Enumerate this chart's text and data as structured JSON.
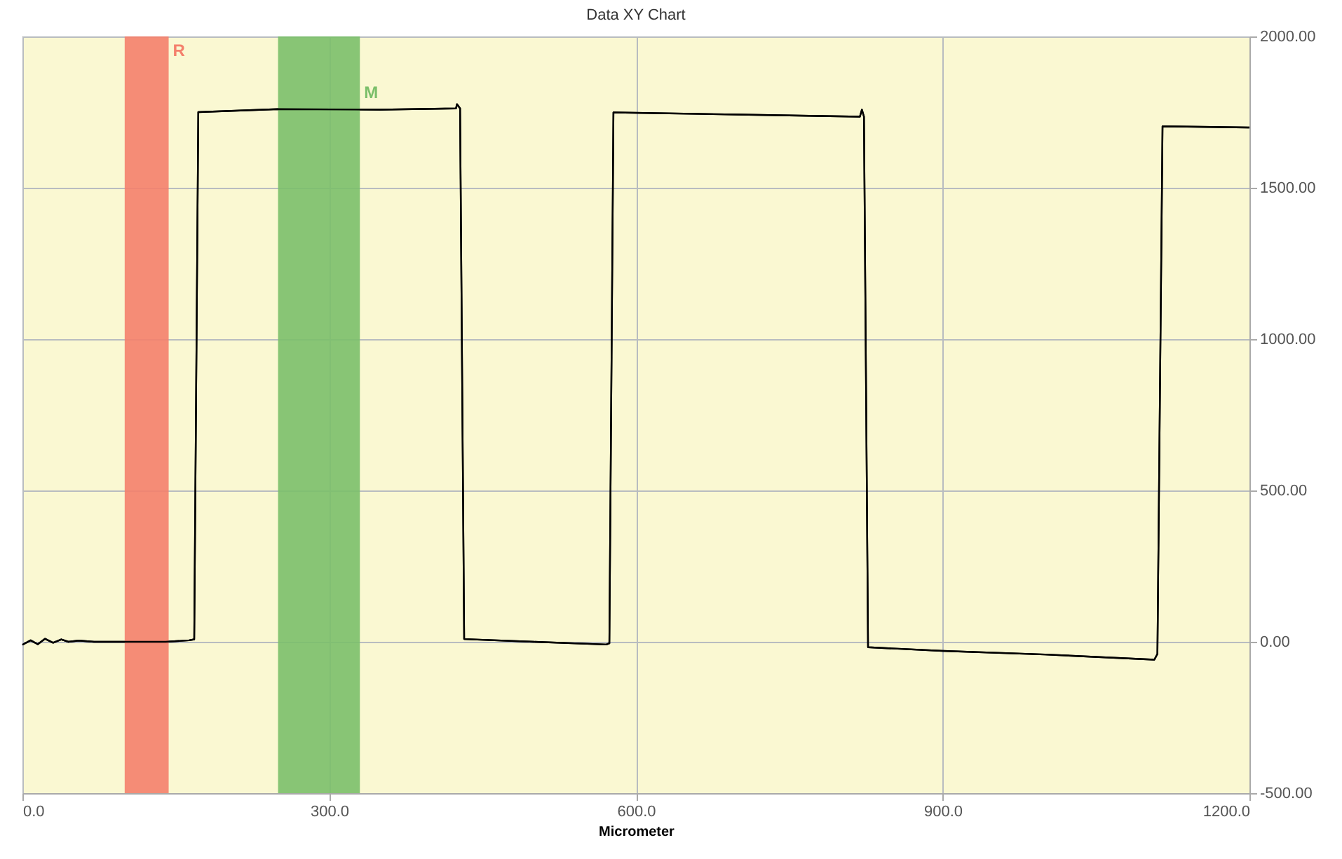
{
  "chart_data": {
    "type": "line",
    "title": "Data XY Chart",
    "xlabel": "Micrometer",
    "x": [
      0,
      8,
      15,
      22,
      30,
      38,
      45,
      55,
      70,
      100,
      140,
      163,
      168,
      172,
      250,
      350,
      424,
      425,
      428,
      432,
      500,
      571,
      574,
      578,
      700,
      819,
      821,
      823,
      827,
      900,
      1000,
      1107,
      1110,
      1115,
      1200
    ],
    "series": [
      {
        "color": "#000000",
        "values": [
          -10,
          5,
          -8,
          10,
          -3,
          8,
          0,
          4,
          0,
          0,
          0,
          5,
          8,
          1750,
          1760,
          1758,
          1762,
          1776,
          1762,
          9,
          0,
          -9,
          -5,
          1749,
          1742,
          1735,
          1758,
          1735,
          -18,
          -30,
          -42,
          -59,
          -40,
          1703,
          1699
        ]
      }
    ],
    "xlim": [
      0,
      1200
    ],
    "xticks": [
      {
        "value": 0,
        "label": "0.0"
      },
      {
        "value": 300,
        "label": "300.0"
      },
      {
        "value": 600,
        "label": "600.0"
      },
      {
        "value": 900,
        "label": "900.0"
      },
      {
        "value": 1200,
        "label": "1200.0"
      }
    ],
    "ylim": [
      -500,
      2000
    ],
    "yticks": [
      {
        "value": -500,
        "label": "-500.00"
      },
      {
        "value": 0,
        "label": "0.00"
      },
      {
        "value": 500,
        "label": "500.00"
      },
      {
        "value": 1000,
        "label": "1000.00"
      },
      {
        "value": 1500,
        "label": "1500.00"
      },
      {
        "value": 2000,
        "label": "2000.00"
      }
    ],
    "bands": [
      {
        "axis": "x",
        "from": 100,
        "to": 143,
        "label": "R",
        "color": "#f4806c"
      },
      {
        "axis": "x",
        "from": 250,
        "to": 330,
        "label": "M",
        "color": "#7bbf6a"
      }
    ],
    "grid": true,
    "line_style": "solid",
    "marker": "none",
    "legend": false
  }
}
